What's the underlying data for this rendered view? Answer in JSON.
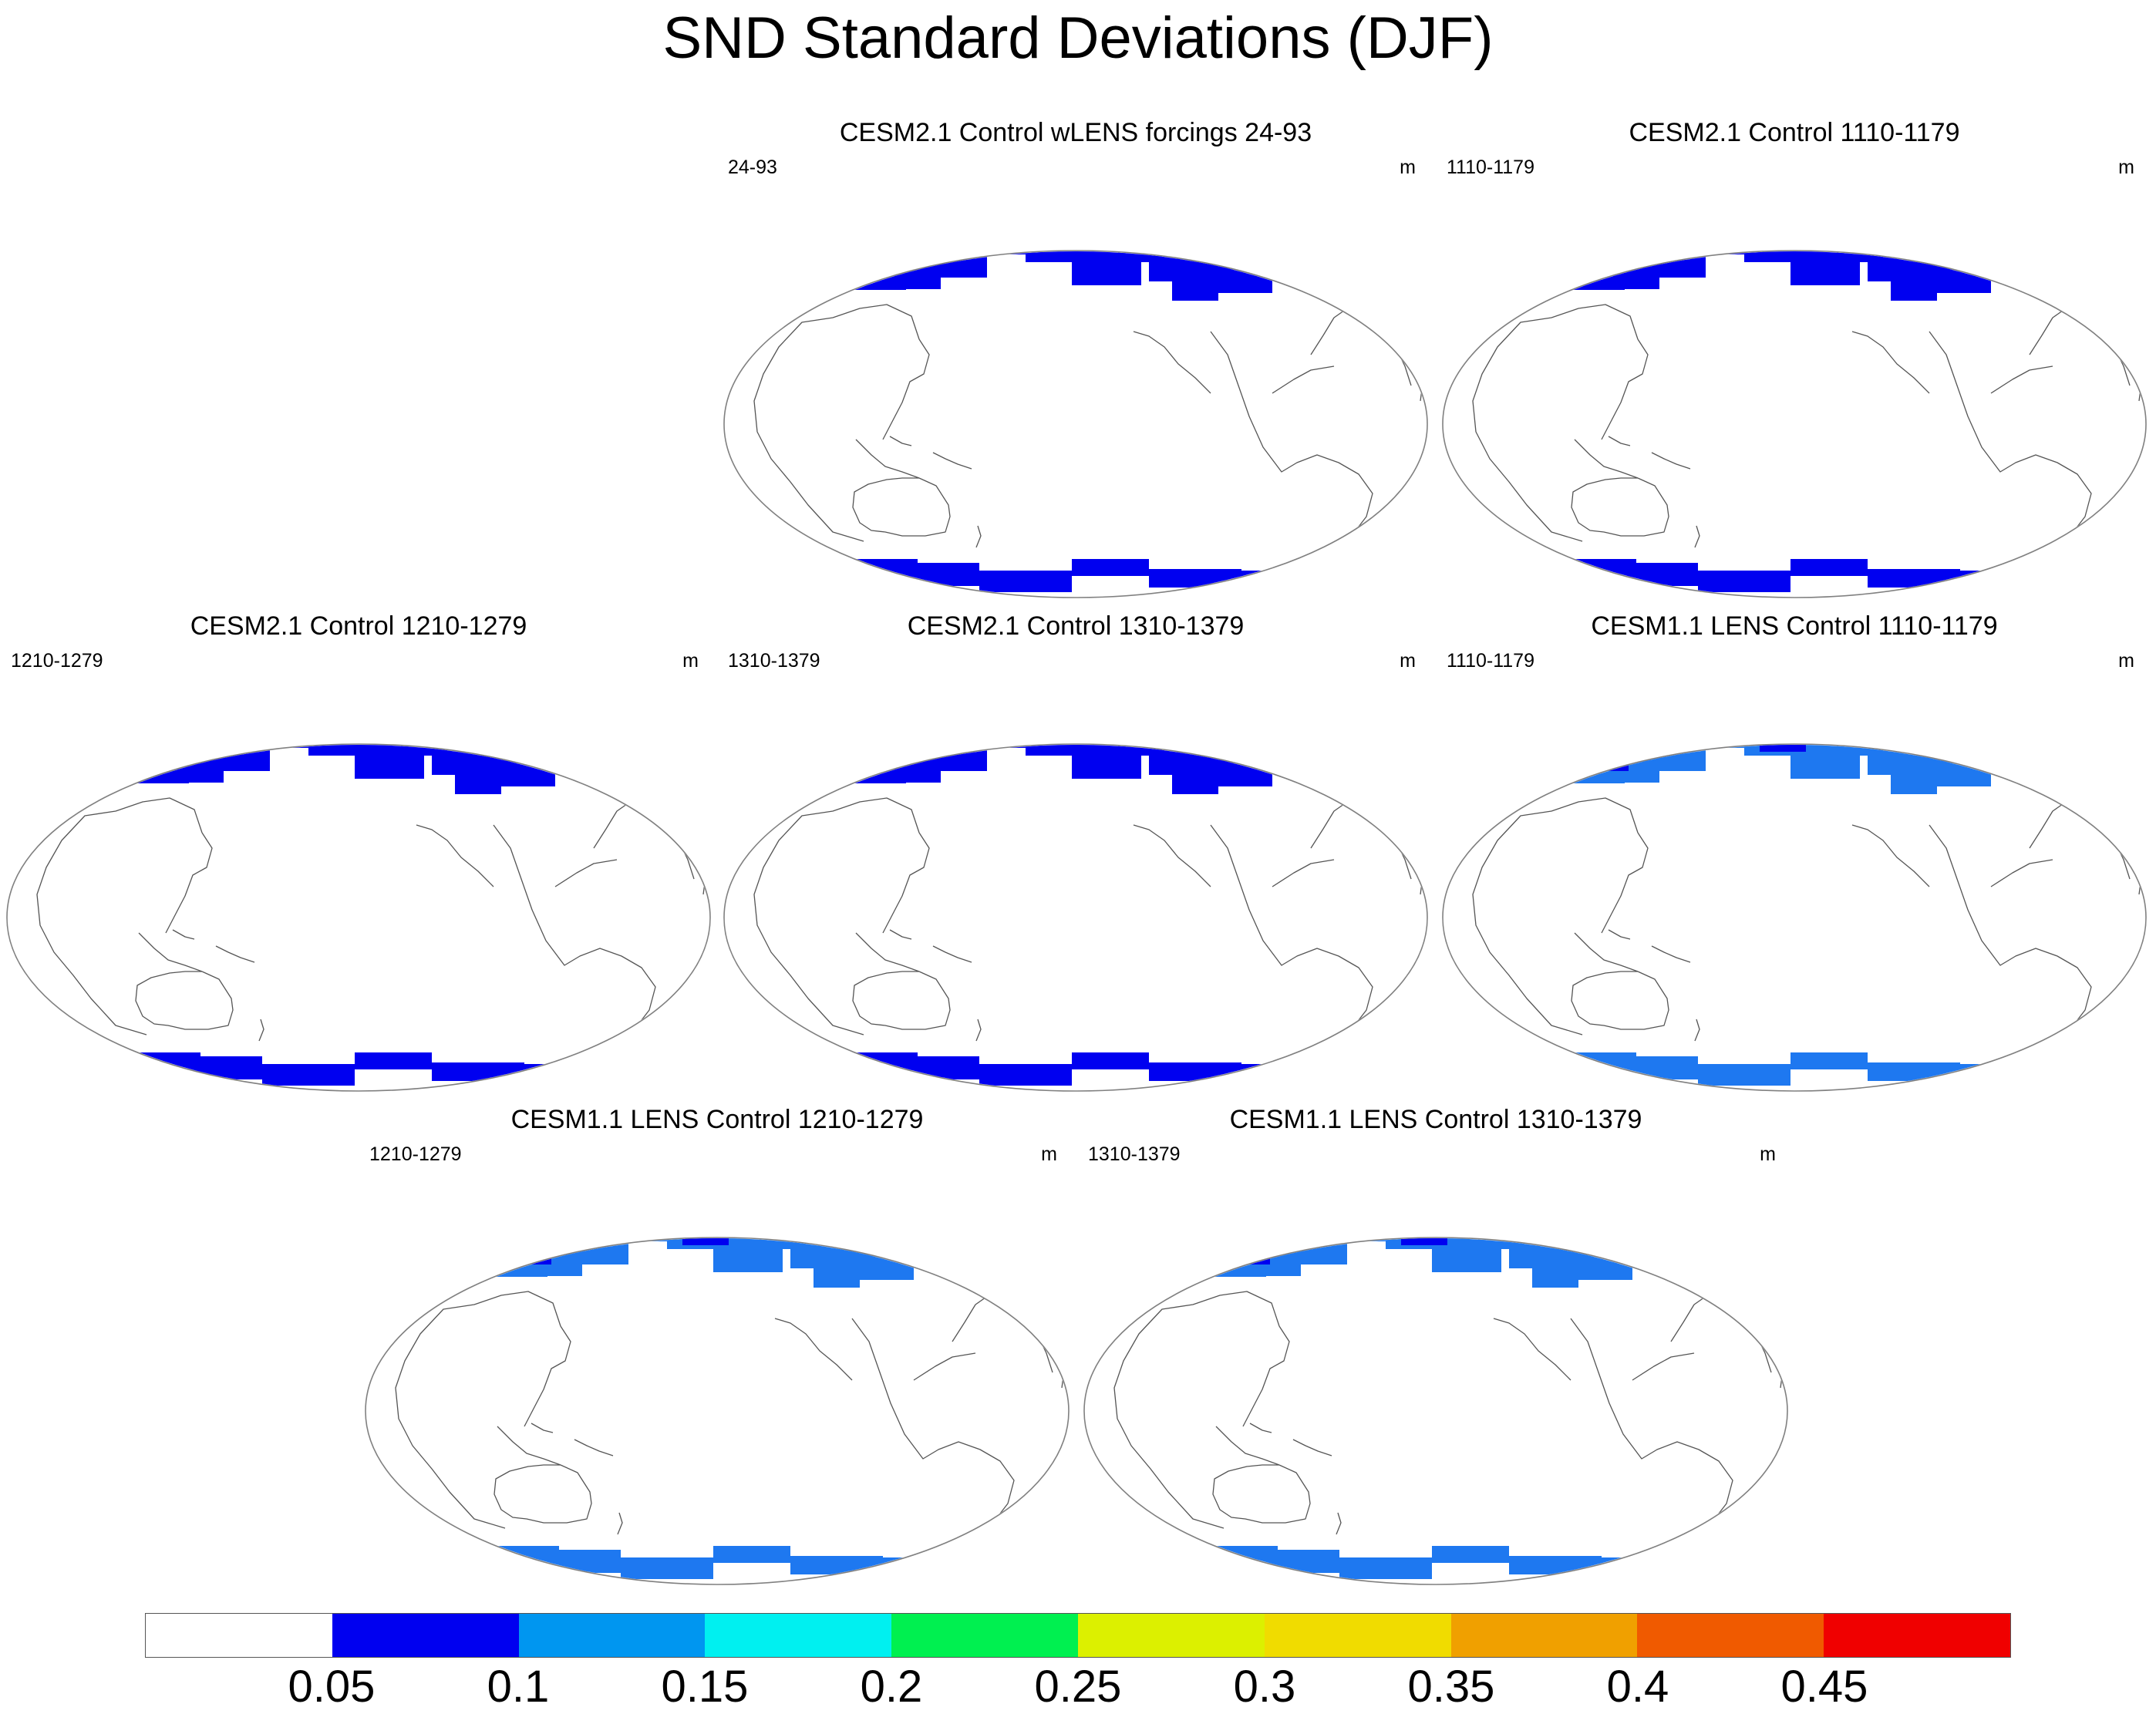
{
  "title": "SND Standard Deviations (DJF)",
  "units": "m",
  "panels": [
    {
      "title": "CESM2.1 Control wLENS forcings 24-93",
      "left_label": "24-93",
      "units": "m",
      "snow_shade": "#0000f0"
    },
    {
      "title": "CESM2.1 Control 1110-1179",
      "left_label": "1110-1179",
      "units": "m",
      "snow_shade": "#0000f0"
    },
    {
      "title": "CESM2.1 Control 1210-1279",
      "left_label": "1210-1279",
      "units": "m",
      "snow_shade": "#0000f0"
    },
    {
      "title": "CESM2.1 Control 1310-1379",
      "left_label": "1310-1379",
      "units": "m",
      "snow_shade": "#0000f0"
    },
    {
      "title": "CESM1.1 LENS Control 1110-1179",
      "left_label": "1110-1179",
      "units": "m",
      "snow_shade": "#1e78f0"
    },
    {
      "title": "CESM1.1 LENS Control 1210-1279",
      "left_label": "1210-1279",
      "units": "m",
      "snow_shade": "#1e78f0"
    },
    {
      "title": "CESM1.1 LENS Control 1310-1379",
      "left_label": "1310-1379",
      "units": "m",
      "snow_shade": "#1e78f0"
    }
  ],
  "colorbar": {
    "levels": [
      "0.05",
      "0.1",
      "0.15",
      "0.2",
      "0.25",
      "0.3",
      "0.35",
      "0.4",
      "0.45"
    ],
    "colors": [
      "#ffffff",
      "#0000f0",
      "#0096f0",
      "#00f0f0",
      "#00f050",
      "#dcf000",
      "#f0dc00",
      "#f0a000",
      "#f05a00",
      "#f00000"
    ]
  }
}
